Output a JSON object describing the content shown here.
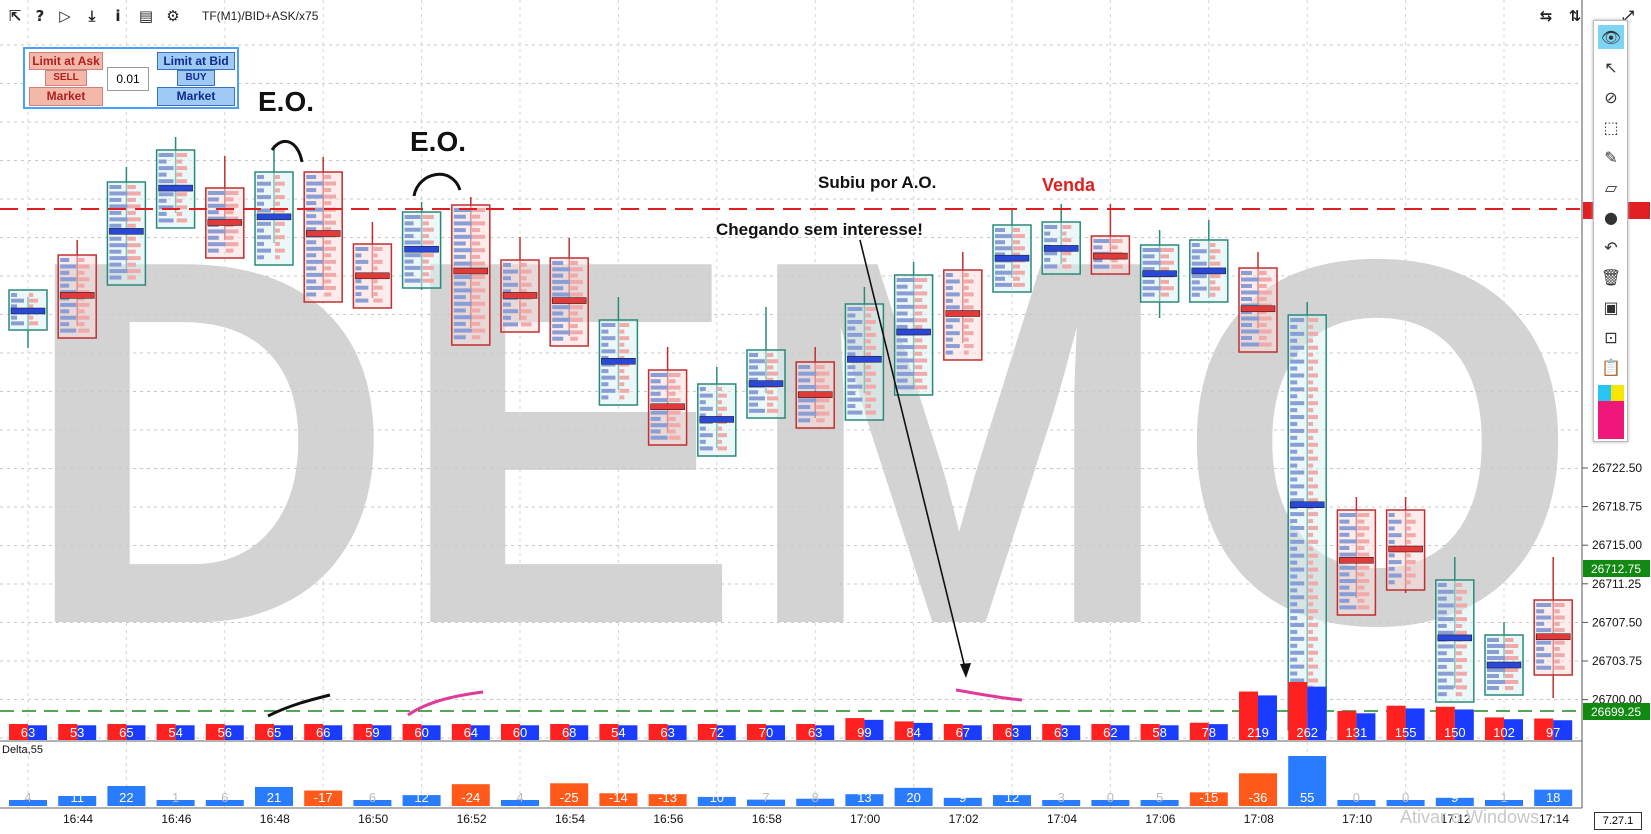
{
  "toolbar": {
    "instrument": "TF(M1)/BID+ASK/x75",
    "icons": [
      "cursor-back-icon",
      "help-icon",
      "play-icon",
      "download-icon",
      "info-icon",
      "chart-icon",
      "gear-icon"
    ],
    "right_icons": [
      "arrows-horizontal-icon",
      "arrows-vertical-icon",
      "expand-icon"
    ]
  },
  "order_panel": {
    "limit_ask": "Limit at Ask",
    "sell": "SELL",
    "market_left": "Market",
    "quantity": "0.01",
    "limit_bid": "Limit at Bid",
    "buy": "BUY",
    "market_right": "Market"
  },
  "annotations": {
    "eo1": "E.O.",
    "eo2": "E.O.",
    "subiu": "Subiu por A.O.",
    "venda": "Venda",
    "chegando": "Chegando sem interesse!"
  },
  "watermark_text": "DEMO",
  "windows_watermark": "Ativar o Windows",
  "version": "7.27.1",
  "colors": {
    "sell": "#ff2020",
    "buy": "#1a3cff",
    "bull_box": "#2a8a7a",
    "bear_box": "#c03030",
    "price_tag": "#128a12",
    "delta_pos": "#2a7cff",
    "delta_neg": "#ff5a1a"
  },
  "chart_data": {
    "type": "bar",
    "panel_label": "Delta,55",
    "y_ticks": [
      "26722.50",
      "26718.75",
      "26715.00",
      "26711.25",
      "26707.50",
      "26703.75",
      "26700.00"
    ],
    "current_price": "26712.75",
    "second_price": "26699.25",
    "x_ticks": [
      "16:44",
      "16:46",
      "16:48",
      "16:50",
      "16:52",
      "16:54",
      "16:56",
      "16:58",
      "17:00",
      "17:02",
      "17:04",
      "17:06",
      "17:08",
      "17:10",
      "17:12",
      "17:14"
    ],
    "volume": [
      63,
      53,
      65,
      54,
      56,
      65,
      66,
      59,
      60,
      64,
      60,
      68,
      54,
      63,
      72,
      70,
      63,
      99,
      84,
      67,
      63,
      63,
      62,
      58,
      78,
      219,
      262,
      131,
      155,
      150,
      102,
      97
    ],
    "delta": [
      4,
      11,
      22,
      1,
      6,
      21,
      -17,
      6,
      12,
      -24,
      4,
      -25,
      -14,
      -13,
      10,
      7,
      8,
      13,
      20,
      9,
      12,
      3,
      0,
      5,
      -15,
      -36,
      55,
      0,
      0,
      9,
      1,
      18
    ]
  }
}
